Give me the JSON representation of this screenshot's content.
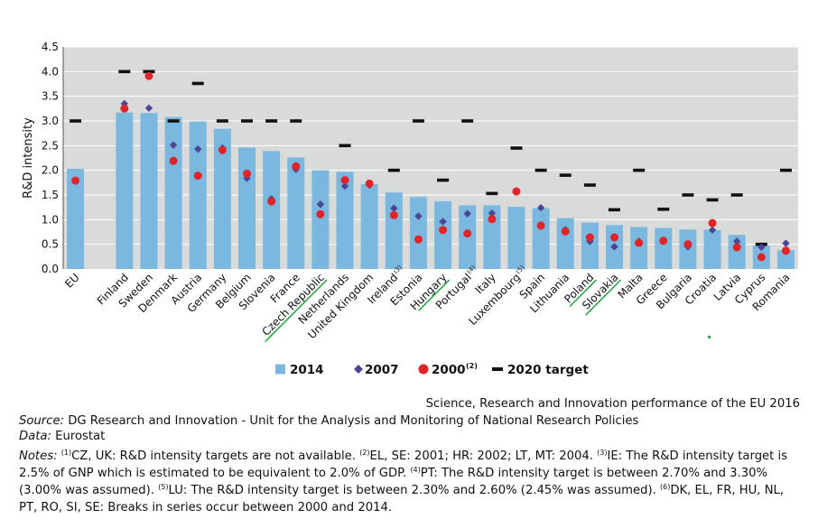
{
  "chart_data": {
    "type": "bar",
    "ylabel": "R&D intensity",
    "ylim": [
      0,
      4.5
    ],
    "yticks": [
      "0.0",
      "0.5",
      "1.0",
      "1.5",
      "2.0",
      "2.5",
      "3.0",
      "3.5",
      "4.0",
      "4.5"
    ],
    "grid": true,
    "categories": [
      {
        "label": "EU"
      },
      {
        "label": ""
      },
      {
        "label": "Finland"
      },
      {
        "label": "Sweden"
      },
      {
        "label": "Denmark"
      },
      {
        "label": "Austria"
      },
      {
        "label": "Germany"
      },
      {
        "label": "Belgium"
      },
      {
        "label": "Slovenia"
      },
      {
        "label": "France"
      },
      {
        "label": "Czech Republic",
        "underline": true
      },
      {
        "label": "Netherlands"
      },
      {
        "label": "United Kingdom"
      },
      {
        "label": "Ireland",
        "sup": "(3)"
      },
      {
        "label": "Estonia"
      },
      {
        "label": "Hungary",
        "underline": true
      },
      {
        "label": "Portugal",
        "sup": "(4)"
      },
      {
        "label": "Italy"
      },
      {
        "label": "Luxembourg",
        "sup": "(5)"
      },
      {
        "label": "Spain"
      },
      {
        "label": "Lithuania"
      },
      {
        "label": "Poland",
        "underline": true
      },
      {
        "label": "Slovakia",
        "underline": true
      },
      {
        "label": "Malta"
      },
      {
        "label": "Greece"
      },
      {
        "label": "Bulgaria"
      },
      {
        "label": "Croatia"
      },
      {
        "label": "Latvia"
      },
      {
        "label": "Cyprus"
      },
      {
        "label": "Romania"
      }
    ],
    "series": [
      {
        "name": "2014",
        "kind": "bar",
        "color": "#7bb8df",
        "values": [
          2.03,
          null,
          3.17,
          3.16,
          3.08,
          2.99,
          2.84,
          2.46,
          2.39,
          2.26,
          2.0,
          1.97,
          1.72,
          1.55,
          1.46,
          1.37,
          1.29,
          1.29,
          1.26,
          1.23,
          1.03,
          0.94,
          0.89,
          0.85,
          0.83,
          0.8,
          0.79,
          0.69,
          0.47,
          0.38
        ]
      },
      {
        "name": "2007",
        "kind": "diamond",
        "color": "#4c4494",
        "values": [
          null,
          null,
          3.35,
          3.26,
          2.51,
          2.43,
          2.45,
          1.84,
          1.42,
          2.02,
          1.31,
          1.68,
          1.7,
          1.23,
          1.07,
          0.96,
          1.12,
          1.13,
          1.58,
          1.24,
          0.8,
          0.56,
          0.45,
          0.56,
          0.58,
          0.45,
          0.79,
          0.56,
          0.44,
          0.52
        ]
      },
      {
        "name": "2000",
        "sup": "(2)",
        "kind": "dot",
        "color": "#e02428",
        "values": [
          1.79,
          null,
          3.25,
          3.91,
          2.19,
          1.89,
          2.41,
          1.93,
          1.37,
          2.08,
          1.11,
          1.8,
          1.73,
          1.09,
          0.6,
          0.79,
          0.72,
          1.01,
          1.57,
          0.88,
          0.76,
          0.64,
          0.64,
          0.53,
          0.57,
          0.5,
          0.93,
          0.44,
          0.24,
          0.37
        ]
      },
      {
        "name": "2020 target",
        "kind": "dash",
        "color": "#111111",
        "values": [
          3.0,
          null,
          4.0,
          4.0,
          3.0,
          3.76,
          3.0,
          3.0,
          3.0,
          3.0,
          null,
          2.5,
          null,
          2.0,
          3.0,
          1.8,
          3.0,
          1.53,
          2.45,
          2.0,
          1.9,
          1.7,
          1.2,
          2.0,
          1.21,
          1.5,
          1.4,
          1.5,
          0.5,
          2.0
        ]
      }
    ]
  },
  "legend": {
    "items": [
      {
        "label": "2014"
      },
      {
        "label": "2007"
      },
      {
        "label": "2000",
        "sup": "(2)"
      },
      {
        "label": "2020 target"
      }
    ]
  },
  "credit": "Science, Research and Innovation performance of the EU 2016",
  "source": {
    "label": "Source:",
    "text": " DG Research and Innovation - Unit for the Analysis and Monitoring of National Research Policies"
  },
  "data_source": {
    "label": "Data:",
    "text": " Eurostat"
  },
  "notes": {
    "label": "Notes:",
    "parts": [
      {
        "sup": "(1)",
        "text": "CZ, UK: R&D intensity targets are not available. "
      },
      {
        "sup": "(2)",
        "text": "EL, SE: 2001; HR: 2002; LT, MT: 2004. "
      },
      {
        "sup": "(3)",
        "text": "IE: The R&D intensity target is 2.5% of GNP which is estimated to be equivalent to 2.0% of GDP. "
      },
      {
        "sup": "(4)",
        "text": "PT: The R&D intensity target is between 2.70% and 3.30% (3.00% was assumed). "
      },
      {
        "sup": "(5)",
        "text": "LU: The R&D intensity target is between 2.30% and 2.60% (2.45% was assumed). "
      },
      {
        "sup": "(6)",
        "text": "DK, EL, FR, HU, NL, PT, RO, SI, SE: Breaks in series occur between 2000 and 2014."
      }
    ]
  },
  "colors": {
    "plot_bg": "#d9dada",
    "grid": "#ffffff",
    "bar": "#7bb8df",
    "diamond": "#4c4494",
    "dot": "#e02428",
    "dash": "#111111",
    "underline": "#2aa848"
  }
}
